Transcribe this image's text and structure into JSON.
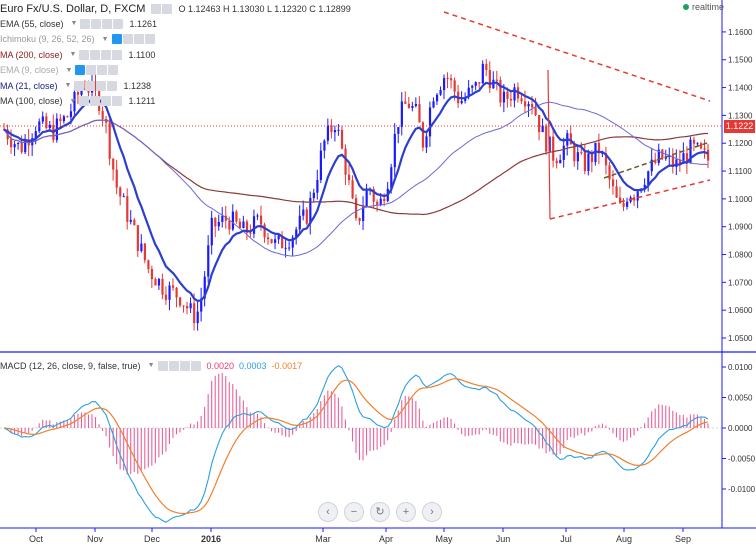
{
  "header": {
    "title": "Euro Fx/U.S. Dollar, D, FXCM",
    "ohlc": "O 1.12463 H 1.13030 L 1.12320 C 1.12899",
    "realtime_label": "realtime"
  },
  "indicators": [
    {
      "name": "EMA (55, close)",
      "value": "1.1261",
      "color": "#333333"
    },
    {
      "name": "Ichimoku (9, 26, 52, 26)",
      "value": "",
      "color": "#999999"
    },
    {
      "name": "MA (200, close)",
      "value": "1.1100",
      "color": "#8b1a1a"
    },
    {
      "name": "EMA (9, close)",
      "value": "",
      "color": "#aaaaaa"
    },
    {
      "name": "MA (21, close)",
      "value": "1.1238",
      "color": "#1a237e"
    },
    {
      "name": "MA (100, close)",
      "value": "1.1211",
      "color": "#333333"
    }
  ],
  "macd_legend": {
    "name": "MACD (12, 26, close, 9, false, true)",
    "v1": "0.0020",
    "v2": "0.0003",
    "v3": "-0.0017"
  },
  "price_tag": "1.1222",
  "colors": {
    "up": "#1a1aff",
    "down": "#e53935",
    "ema": "#2c3ed0",
    "ma200": "#8b3a3a",
    "ma100": "#6a6ad8",
    "macd": "#2aa0e0",
    "signal": "#f08030",
    "hist": "#e8609a",
    "trend": "#e53935"
  },
  "chart_data": [
    {
      "type": "candlestick",
      "title": "Euro Fx/U.S. Dollar, D, FXCM",
      "xlabel": "",
      "ylabel": "",
      "ylim": [
        1.045,
        1.17
      ],
      "x_ticks": [
        "Oct",
        "Nov",
        "Dec",
        "2016",
        "Mar",
        "Apr",
        "May",
        "Jun",
        "Jul",
        "Aug",
        "Sep"
      ],
      "y_ticks": [
        "1.1600",
        "1.1500",
        "1.1400",
        "1.1300",
        "1.1200",
        "1.1100",
        "1.1000",
        "1.0900",
        "1.0800",
        "1.0700",
        "1.0600",
        "1.0500"
      ],
      "close_path": [
        [
          0,
          1.125
        ],
        [
          10,
          1.118
        ],
        [
          20,
          1.127
        ],
        [
          30,
          1.124
        ],
        [
          40,
          1.13
        ],
        [
          50,
          1.142
        ],
        [
          60,
          1.135
        ],
        [
          64,
          1.125
        ],
        [
          70,
          1.105
        ],
        [
          80,
          1.09
        ],
        [
          90,
          1.075
        ],
        [
          100,
          1.068
        ],
        [
          110,
          1.065
        ],
        [
          118,
          1.058
        ],
        [
          122,
          1.06
        ],
        [
          130,
          1.09
        ],
        [
          140,
          1.093
        ],
        [
          150,
          1.088
        ],
        [
          160,
          1.092
        ],
        [
          170,
          1.083
        ],
        [
          180,
          1.087
        ],
        [
          190,
          1.095
        ],
        [
          200,
          1.12
        ],
        [
          207,
          1.128
        ],
        [
          214,
          1.11
        ],
        [
          220,
          1.09
        ],
        [
          228,
          1.105
        ],
        [
          234,
          1.096
        ],
        [
          240,
          1.108
        ],
        [
          246,
          1.128
        ],
        [
          252,
          1.135
        ],
        [
          258,
          1.13
        ],
        [
          262,
          1.12
        ],
        [
          268,
          1.138
        ],
        [
          276,
          1.145
        ],
        [
          285,
          1.135
        ],
        [
          295,
          1.14
        ],
        [
          300,
          1.148
        ],
        [
          305,
          1.142
        ],
        [
          312,
          1.135
        ],
        [
          320,
          1.14
        ],
        [
          330,
          1.135
        ],
        [
          336,
          1.124
        ],
        [
          344,
          1.115
        ],
        [
          352,
          1.12
        ],
        [
          362,
          1.112
        ],
        [
          372,
          1.118
        ],
        [
          382,
          1.1
        ],
        [
          386,
          1.095
        ],
        [
          390,
          1.103
        ],
        [
          394,
          1.102
        ],
        [
          400,
          1.108
        ],
        [
          410,
          1.115
        ],
        [
          420,
          1.112
        ],
        [
          430,
          1.118
        ],
        [
          440,
          1.114
        ]
      ],
      "indicators": [
        {
          "name": "EMA (55, close)",
          "last": 1.1261
        },
        {
          "name": "MA (200, close)",
          "last": 1.11
        },
        {
          "name": "MA (21, close)",
          "last": 1.1238
        },
        {
          "name": "MA (100, close)",
          "last": 1.1211
        }
      ],
      "trendlines": [
        {
          "style": "dashed",
          "color": "#e53935",
          "from": [
            "May",
            1.162
          ],
          "to": [
            "Sep",
            1.13
          ]
        },
        {
          "style": "dashed",
          "color": "#e53935",
          "from": [
            "Jun",
            1.091
          ],
          "to": [
            "Sep",
            1.104
          ]
        },
        {
          "style": "dashed",
          "color": "#6b5a2a",
          "from": [
            "Aug",
            1.106
          ],
          "to": [
            "Sep",
            1.117
          ]
        }
      ],
      "last_price": 1.1222
    },
    {
      "type": "line",
      "title": "MACD (12, 26, close, 9, false, true)",
      "ylim": [
        -0.018,
        0.018
      ],
      "y_ticks": [
        "0.0100",
        "0.0050",
        "0.0000",
        "-0.0050",
        "-0.0100"
      ],
      "series": [
        {
          "name": "MACD",
          "color": "#2aa0e0"
        },
        {
          "name": "Signal",
          "color": "#f08030"
        },
        {
          "name": "Histogram",
          "color": "#e8609a"
        }
      ],
      "last_values": [
        0.002,
        0.0003,
        -0.0017
      ]
    }
  ]
}
